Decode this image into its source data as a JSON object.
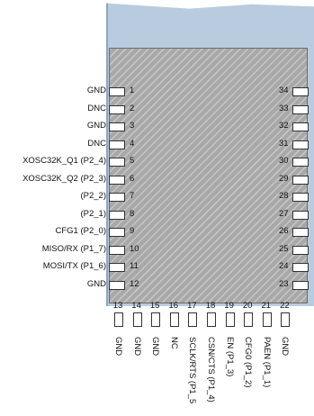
{
  "left_pins": [
    {
      "num": "1",
      "label": "GND"
    },
    {
      "num": "2",
      "label": "DNC"
    },
    {
      "num": "3",
      "label": "GND"
    },
    {
      "num": "4",
      "label": "DNC"
    },
    {
      "num": "5",
      "label": "XOSC32K_Q1 (P2_4)"
    },
    {
      "num": "6",
      "label": "XOSC32K_Q2 (P2_3)"
    },
    {
      "num": "7",
      "label": "(P2_2)"
    },
    {
      "num": "8",
      "label": "(P2_1)"
    },
    {
      "num": "9",
      "label": "CFG1 (P2_0)"
    },
    {
      "num": "10",
      "label": "MISO/RX (P1_7)"
    },
    {
      "num": "11",
      "label": "MOSI/TX (P1_6)"
    },
    {
      "num": "12",
      "label": "GND"
    }
  ],
  "right_pins": [
    "34",
    "33",
    "32",
    "31",
    "30",
    "29",
    "28",
    "27",
    "26",
    "25",
    "24",
    "23"
  ],
  "bottom_pins": [
    {
      "num": "13",
      "label": "GND"
    },
    {
      "num": "14",
      "label": "GND"
    },
    {
      "num": "15",
      "label": "GND"
    },
    {
      "num": "16",
      "label": "NC"
    },
    {
      "num": "17",
      "label": "SCLK/RTS (P1_5"
    },
    {
      "num": "18",
      "label": "CSN/CTS (P1_4)"
    },
    {
      "num": "19",
      "label": "EN (P1_3)"
    },
    {
      "num": "20",
      "label": "CFG0 (P1_2)"
    },
    {
      "num": "21",
      "label": "PAEN (P1_1)"
    },
    {
      "num": "22",
      "label": "GND"
    }
  ]
}
